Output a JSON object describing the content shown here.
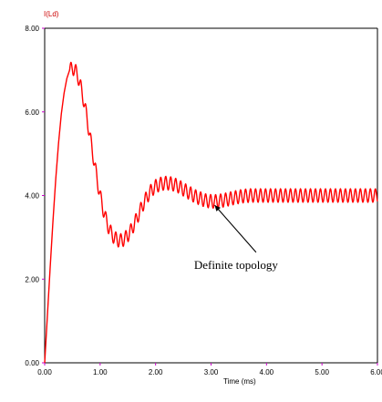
{
  "chart_data": {
    "type": "line",
    "title": "",
    "xlabel": "Time (ms)",
    "ylabel": "I(Ld)",
    "xlim": [
      0,
      6
    ],
    "ylim": [
      0,
      8
    ],
    "xticks": [
      "0.00",
      "1.00",
      "2.00",
      "3.00",
      "4.00",
      "5.00",
      "6.00"
    ],
    "yticks": [
      "0.00",
      "2.00",
      "4.00",
      "6.00",
      "8.00"
    ],
    "grid": false,
    "colors": {
      "series": "#ff0000",
      "ylabel": "#cc0000",
      "axes": "#000000",
      "ticks": "#cc00cc"
    },
    "series": [
      {
        "name": "",
        "color": "#ff0000",
        "x": [
          0.0,
          0.05,
          0.1,
          0.15,
          0.2,
          0.25,
          0.3,
          0.35,
          0.4,
          0.45,
          0.5,
          0.55,
          0.6,
          0.65,
          0.7,
          0.75,
          0.8,
          0.85,
          0.9,
          0.95,
          1.0,
          1.05,
          1.1,
          1.15,
          1.2,
          1.25,
          1.3,
          1.35,
          1.4,
          1.45,
          1.5,
          1.55,
          1.6,
          1.65,
          1.7,
          1.75,
          1.8,
          1.85,
          1.9,
          1.95,
          2.0,
          2.1,
          2.2,
          2.3,
          2.4,
          2.5,
          2.6,
          2.7,
          2.8,
          2.9,
          3.0,
          3.1,
          3.2,
          3.3,
          3.4,
          3.5,
          3.6,
          3.7,
          3.8,
          3.9,
          4.0,
          4.2,
          4.4,
          4.6,
          4.8,
          5.0,
          5.2,
          5.4,
          5.6,
          5.8,
          6.0
        ],
        "y": [
          0.0,
          1.15,
          2.3,
          3.4,
          4.4,
          5.25,
          5.95,
          6.45,
          6.8,
          7.0,
          7.05,
          7.0,
          6.85,
          6.6,
          6.3,
          5.95,
          5.55,
          5.15,
          4.75,
          4.35,
          4.0,
          3.7,
          3.45,
          3.25,
          3.1,
          3.0,
          2.95,
          2.92,
          2.93,
          2.98,
          3.05,
          3.15,
          3.28,
          3.42,
          3.57,
          3.72,
          3.86,
          3.98,
          4.08,
          4.16,
          4.22,
          4.28,
          4.3,
          4.28,
          4.23,
          4.15,
          4.07,
          3.99,
          3.93,
          3.88,
          3.86,
          3.86,
          3.88,
          3.91,
          3.94,
          3.97,
          3.99,
          4.0,
          4.0,
          4.0,
          4.0,
          4.0,
          4.0,
          4.0,
          4.0,
          4.0,
          4.0,
          4.0,
          4.0,
          4.0,
          4.0
        ]
      }
    ],
    "annotations": [
      {
        "text": "Definite topology",
        "x": 3.45,
        "y": 2.25,
        "arrow_to": [
          3.0,
          3.9
        ]
      }
    ]
  }
}
